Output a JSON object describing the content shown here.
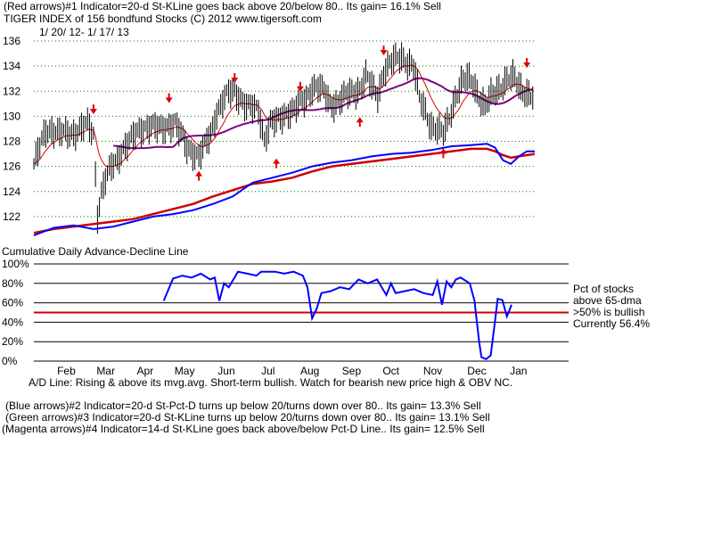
{
  "header": {
    "line1": "(Red arrows)#1 Indicator=20-d St-KLine goes back above 20/below 80.. Its gain= 16.1% Sell",
    "line2": "TIGER INDEX of  156 bondfund Stocks  (C) 2012  www.tigersoft.com",
    "line3": "1/ 20/ 12- 1/ 17/ 13"
  },
  "middle": {
    "ad_title": "Cumulative Daily Advance-Decline Line",
    "ad_note": "A/D Line: Rising & above its mvg.avg. Short-term bullish. Watch for bearish new price high & OBV NC."
  },
  "pct_panel": {
    "line1": "Pct of stocks",
    "line2": "above 65-dma",
    "line3": ">50% is bullish",
    "line4": "Currently  56.4%"
  },
  "footer": {
    "line1": "(Blue arrows)#2 Indicator=20-d St-Pct-D turns up below 20/turns down over 80.. Its gain= 13.3% Sell",
    "line2": " (Green arrows)#3 Indicator=20-d St-KLine turns up below 20/turns down over 80.. Its gain= 13.1% Sell",
    "line3": "(Magenta arrows)#4 Indicator=14-d St-KLine goes back above/below Pct-D Line.. Its gain= 12.5% Sell"
  },
  "colors": {
    "price": "#000000",
    "ma_red": "#dd0000",
    "ma_purple": "#800080",
    "ad_line": "#0000ff",
    "ad_ma": "#cc0000",
    "grid": "#008000",
    "pct_line": "#0000ff",
    "fifty_line": "#cc0000"
  },
  "chart_data": [
    {
      "type": "line",
      "title": "TIGER INDEX of 156 bondfund Stocks",
      "ylim": [
        120,
        136
      ],
      "yticks": [
        "122",
        "124",
        "126",
        "128",
        "130",
        "132",
        "134",
        "136"
      ],
      "ytick_values": [
        122,
        124,
        126,
        128,
        130,
        132,
        134,
        136
      ],
      "price_x": [
        0,
        3,
        6,
        9,
        12,
        15,
        18,
        21,
        24,
        27,
        30,
        32,
        34,
        36,
        38,
        40,
        42,
        44,
        46,
        48,
        50,
        53,
        56,
        59,
        62,
        65,
        68,
        71,
        74,
        77,
        80,
        83,
        86,
        89,
        92,
        95,
        98,
        101,
        104,
        107,
        110,
        113,
        116,
        119,
        122,
        125,
        128,
        131,
        134,
        137,
        140,
        143,
        146,
        149,
        152,
        155,
        158,
        161,
        164,
        167,
        170,
        173,
        176,
        179,
        182,
        185,
        188,
        191,
        194,
        197,
        200,
        203,
        206,
        209,
        212,
        215,
        218,
        221,
        224,
        227,
        230,
        233,
        236,
        239,
        242,
        245,
        248,
        251
      ],
      "price": [
        126.2,
        127.5,
        128.8,
        129.0,
        128.7,
        128.6,
        128.6,
        128.8,
        129.1,
        129.3,
        128.5,
        122.2,
        124.0,
        125.0,
        125.6,
        126.1,
        126.5,
        127.3,
        127.7,
        128.0,
        128.3,
        128.8,
        129.2,
        129.3,
        129.0,
        129.0,
        129.4,
        129.5,
        128.5,
        127.5,
        127.2,
        126.8,
        127.6,
        128.6,
        130.4,
        131.2,
        131.8,
        131.9,
        131.5,
        130.8,
        130.6,
        130.5,
        128.2,
        129.5,
        129.5,
        130.0,
        130.4,
        130.5,
        131.0,
        131.4,
        132.4,
        132.3,
        131.9,
        131.0,
        131.1,
        131.4,
        131.7,
        132.0,
        132.2,
        133.2,
        132.3,
        131.7,
        133.6,
        134.1,
        134.5,
        134.8,
        134.3,
        133.9,
        131.4,
        130.5,
        129.2,
        128.8,
        128.6,
        130.0,
        131.5,
        132.5,
        133.0,
        132.8,
        131.5,
        130.6,
        131.6,
        132.2,
        132.5,
        132.9,
        133.0,
        132.3,
        131.8,
        131.4
      ],
      "ad_line_x": [
        0,
        10,
        20,
        30,
        40,
        50,
        60,
        70,
        80,
        90,
        100,
        110,
        120,
        130,
        140,
        150,
        160,
        170,
        180,
        190,
        200,
        210,
        220,
        228,
        232,
        236,
        240,
        244,
        248,
        252
      ],
      "ad_line": [
        120.5,
        121.1,
        121.3,
        121.0,
        121.2,
        121.6,
        122.0,
        122.2,
        122.5,
        123.0,
        123.6,
        124.7,
        125.1,
        125.5,
        126.0,
        126.3,
        126.5,
        126.8,
        127.0,
        127.1,
        127.3,
        127.6,
        127.7,
        127.8,
        127.5,
        126.5,
        126.2,
        126.8,
        127.2,
        127.2
      ],
      "ad_ma": [
        120.7,
        121.0,
        121.2,
        121.4,
        121.6,
        121.8,
        122.2,
        122.6,
        123.0,
        123.6,
        124.1,
        124.6,
        124.8,
        125.1,
        125.6,
        126.0,
        126.2,
        126.4,
        126.6,
        126.8,
        127.0,
        127.2,
        127.4,
        127.4,
        127.2,
        126.9,
        126.7,
        126.8,
        126.9,
        127.0
      ],
      "red_arrows": [
        {
          "x": 30,
          "y": 130.3,
          "dir": "down"
        },
        {
          "x": 68,
          "y": 131.2,
          "dir": "down"
        },
        {
          "x": 101,
          "y": 132.8,
          "dir": "down"
        },
        {
          "x": 134,
          "y": 132.1,
          "dir": "down"
        },
        {
          "x": 176,
          "y": 135.0,
          "dir": "down"
        },
        {
          "x": 248,
          "y": 134.0,
          "dir": "down"
        },
        {
          "x": 83,
          "y": 125.5,
          "dir": "up"
        },
        {
          "x": 122,
          "y": 126.5,
          "dir": "up"
        },
        {
          "x": 164,
          "y": 129.8,
          "dir": "up"
        },
        {
          "x": 206,
          "y": 127.3,
          "dir": "up"
        }
      ]
    },
    {
      "type": "line",
      "title": "Pct of stocks above 65-dma",
      "ylim": [
        0,
        100
      ],
      "yticks": [
        "100%",
        "80%",
        "60%",
        "40%",
        "20%",
        "0%"
      ],
      "ytick_values": [
        100,
        80,
        60,
        40,
        20,
        0
      ],
      "x_tick_labels": [
        "Feb",
        "Mar",
        "Apr",
        "May",
        "Jun",
        "Jul",
        "Aug",
        "Sep",
        "Oct",
        "Nov",
        "Dec",
        "Jan"
      ],
      "x_tick_positions": [
        14,
        31,
        48,
        65,
        83,
        101,
        119,
        137,
        154,
        172,
        191,
        209
      ],
      "pct_x": [
        56,
        60,
        64,
        68,
        72,
        76,
        78,
        80,
        82,
        84,
        88,
        92,
        96,
        98,
        100,
        104,
        108,
        112,
        116,
        118,
        120,
        122,
        124,
        128,
        132,
        136,
        140,
        144,
        148,
        152,
        154,
        156,
        160,
        164,
        168,
        172,
        174,
        176,
        178,
        180,
        182,
        184,
        188,
        190,
        192,
        193,
        195,
        197,
        199,
        200,
        202,
        204,
        206
      ],
      "pct": [
        62,
        85,
        88,
        86,
        90,
        84,
        86,
        62,
        80,
        76,
        92,
        90,
        88,
        92,
        92,
        92,
        90,
        92,
        88,
        76,
        44,
        54,
        70,
        72,
        76,
        74,
        84,
        80,
        84,
        68,
        80,
        70,
        72,
        74,
        70,
        68,
        82,
        58,
        82,
        76,
        84,
        86,
        80,
        62,
        20,
        4,
        2,
        6,
        44,
        64,
        63,
        46,
        58
      ],
      "fifty_line": 50,
      "current": 56.4
    }
  ]
}
